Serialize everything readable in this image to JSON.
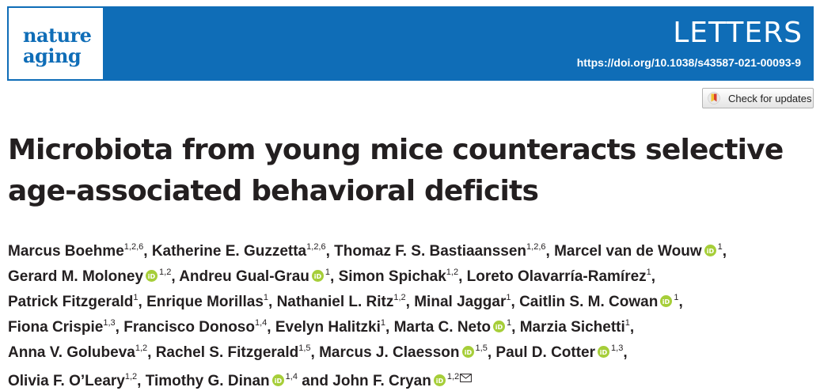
{
  "header": {
    "logo_line1": "nature",
    "logo_line2": "aging",
    "article_type": "LETTERS",
    "doi": "https://doi.org/10.1038/s43587-021-00093-9",
    "colors": {
      "brand_blue": "#0f6db7",
      "orcid_green": "#a6ce39"
    }
  },
  "check_updates": {
    "label": "Check for updates"
  },
  "title": {
    "line1": "Microbiota from young mice counteracts selective",
    "line2": "age-associated behavioral deficits"
  },
  "authors": [
    {
      "name": "Marcus Boehme",
      "affil": "1,2,6",
      "orcid": false
    },
    {
      "name": "Katherine E. Guzzetta",
      "affil": "1,2,6",
      "orcid": false
    },
    {
      "name": "Thomaz F. S. Bastiaanssen",
      "affil": "1,2,6",
      "orcid": false
    },
    {
      "name": "Marcel van de Wouw",
      "affil": "1",
      "orcid": true
    },
    {
      "name": "Gerard M. Moloney",
      "affil": "1,2",
      "orcid": true
    },
    {
      "name": "Andreu Gual-Grau",
      "affil": "1",
      "orcid": true
    },
    {
      "name": "Simon Spichak",
      "affil": "1,2",
      "orcid": false
    },
    {
      "name": "Loreto Olavarría-Ramírez",
      "affil": "1",
      "orcid": false
    },
    {
      "name": "Patrick Fitzgerald",
      "affil": "1",
      "orcid": false
    },
    {
      "name": "Enrique Morillas",
      "affil": "1",
      "orcid": false
    },
    {
      "name": "Nathaniel L. Ritz",
      "affil": "1,2",
      "orcid": false
    },
    {
      "name": "Minal Jaggar",
      "affil": "1",
      "orcid": false
    },
    {
      "name": "Caitlin S. M. Cowan",
      "affil": "1",
      "orcid": true
    },
    {
      "name": "Fiona Crispie",
      "affil": "1,3",
      "orcid": false
    },
    {
      "name": "Francisco Donoso",
      "affil": "1,4",
      "orcid": false
    },
    {
      "name": "Evelyn Halitzki",
      "affil": "1",
      "orcid": false
    },
    {
      "name": "Marta C. Neto",
      "affil": "1",
      "orcid": true
    },
    {
      "name": "Marzia Sichetti",
      "affil": "1",
      "orcid": false
    },
    {
      "name": "Anna V. Golubeva",
      "affil": "1,2",
      "orcid": false
    },
    {
      "name": "Rachel S. Fitzgerald",
      "affil": "1,5",
      "orcid": false
    },
    {
      "name": "Marcus J. Claesson",
      "affil": "1,5",
      "orcid": true
    },
    {
      "name": "Paul D. Cotter",
      "affil": "1,3",
      "orcid": true
    },
    {
      "name": "Olivia F. O’Leary",
      "affil": "1,2",
      "orcid": false
    },
    {
      "name": "Timothy G. Dinan",
      "affil": "1,4",
      "orcid": true
    },
    {
      "name": "John F. Cryan",
      "affil": "1,2",
      "orcid": true,
      "corresponding": true
    }
  ],
  "author_lines": [
    [
      0,
      1,
      2,
      3
    ],
    [
      4,
      5,
      6,
      7
    ],
    [
      8,
      9,
      10,
      11,
      12
    ],
    [
      13,
      14,
      15,
      16,
      17
    ],
    [
      18,
      19,
      20,
      21
    ],
    [
      22,
      23,
      24
    ]
  ],
  "conjunction": "and"
}
